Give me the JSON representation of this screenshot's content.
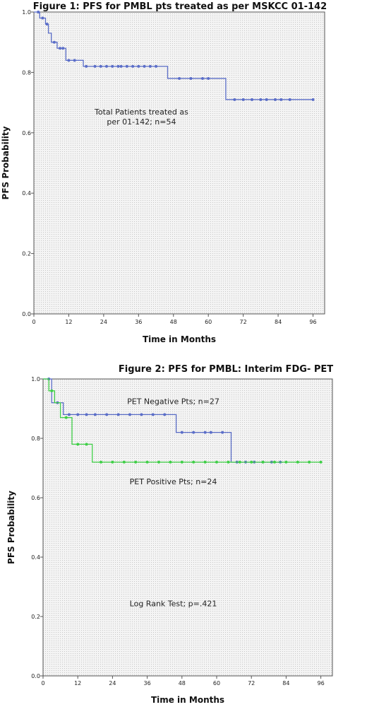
{
  "colors": {
    "blue": "#5b6ec8",
    "green": "#3fcf47",
    "axis": "#555555",
    "plot_bg": "#f4f4f4",
    "grid_dot": "#c6c6c6"
  },
  "chart_data": [
    {
      "type": "line",
      "title": "Figure 1: PFS for PMBL pts treated as per MSKCC 01-142",
      "xlabel": "Time in Months",
      "ylabel": "PFS Probability",
      "xlim": [
        0,
        100
      ],
      "ylim": [
        0,
        1.0
      ],
      "xticks": [
        0,
        12,
        24,
        36,
        48,
        60,
        72,
        84,
        96
      ],
      "yticks": [
        0.0,
        0.2,
        0.4,
        0.6,
        0.8,
        1.0
      ],
      "grid": false,
      "annotations": [
        {
          "lines": [
            "Total Patients treated as",
            "per 01-142; n=54"
          ],
          "x": 37,
          "y": 0.66
        }
      ],
      "series": [
        {
          "color": "#5b6ec8",
          "step_x": [
            0,
            2,
            4,
            5,
            6,
            8,
            11,
            17,
            46,
            66,
            96
          ],
          "step_y": [
            1.0,
            0.98,
            0.96,
            0.93,
            0.9,
            0.88,
            0.84,
            0.82,
            0.78,
            0.71,
            0.71
          ],
          "censor_x": [
            1.5,
            3,
            4.5,
            7,
            9,
            10,
            12,
            14,
            18,
            21,
            23,
            25,
            27,
            29,
            30,
            32,
            34,
            36,
            38,
            40,
            42,
            50,
            54,
            58,
            60,
            69,
            72,
            75,
            78,
            80,
            83,
            85,
            88,
            96
          ],
          "censor_y": [
            1.0,
            0.98,
            0.96,
            0.9,
            0.88,
            0.88,
            0.84,
            0.84,
            0.82,
            0.82,
            0.82,
            0.82,
            0.82,
            0.82,
            0.82,
            0.82,
            0.82,
            0.82,
            0.82,
            0.82,
            0.82,
            0.78,
            0.78,
            0.78,
            0.78,
            0.71,
            0.71,
            0.71,
            0.71,
            0.71,
            0.71,
            0.71,
            0.71,
            0.71
          ]
        }
      ]
    },
    {
      "type": "line",
      "title": "Figure 2: PFS for PMBL: Interim FDG- PET",
      "xlabel": "Time in Months",
      "ylabel": "PFS Probability",
      "xlim": [
        0,
        100
      ],
      "ylim": [
        0,
        1.0
      ],
      "xticks": [
        0,
        12,
        24,
        36,
        48,
        60,
        72,
        84,
        96
      ],
      "yticks": [
        0.0,
        0.2,
        0.4,
        0.6,
        0.8,
        1.0
      ],
      "grid": false,
      "annotations": [
        {
          "lines": [
            "PET Negative Pts; n=27"
          ],
          "x": 45,
          "y": 0.915
        },
        {
          "lines": [
            "PET Positive Pts; n=24"
          ],
          "x": 45,
          "y": 0.645
        },
        {
          "lines": [
            "Log Rank Test; p=.421"
          ],
          "x": 45,
          "y": 0.235
        }
      ],
      "series": [
        {
          "color": "#5b6ec8",
          "step_x": [
            0,
            3,
            7,
            46,
            65,
            83
          ],
          "step_y": [
            1.0,
            0.92,
            0.88,
            0.82,
            0.72,
            0.72
          ],
          "censor_x": [
            2,
            5,
            9,
            12,
            15,
            18,
            22,
            26,
            30,
            34,
            38,
            42,
            48,
            52,
            56,
            58,
            62,
            67,
            70,
            73,
            76,
            79,
            82
          ],
          "censor_y": [
            1.0,
            0.92,
            0.88,
            0.88,
            0.88,
            0.88,
            0.88,
            0.88,
            0.88,
            0.88,
            0.88,
            0.88,
            0.82,
            0.82,
            0.82,
            0.82,
            0.82,
            0.72,
            0.72,
            0.72,
            0.72,
            0.72,
            0.72
          ]
        },
        {
          "color": "#3fcf47",
          "step_x": [
            0,
            2,
            4,
            6,
            10,
            17,
            96
          ],
          "step_y": [
            1.0,
            0.96,
            0.92,
            0.87,
            0.78,
            0.72,
            0.72
          ],
          "censor_x": [
            3,
            8,
            12,
            15,
            20,
            24,
            28,
            32,
            36,
            40,
            44,
            48,
            52,
            56,
            60,
            64,
            68,
            72,
            76,
            80,
            84,
            88,
            92,
            96
          ],
          "censor_y": [
            0.96,
            0.87,
            0.78,
            0.78,
            0.72,
            0.72,
            0.72,
            0.72,
            0.72,
            0.72,
            0.72,
            0.72,
            0.72,
            0.72,
            0.72,
            0.72,
            0.72,
            0.72,
            0.72,
            0.72,
            0.72,
            0.72,
            0.72,
            0.72
          ]
        }
      ]
    }
  ]
}
